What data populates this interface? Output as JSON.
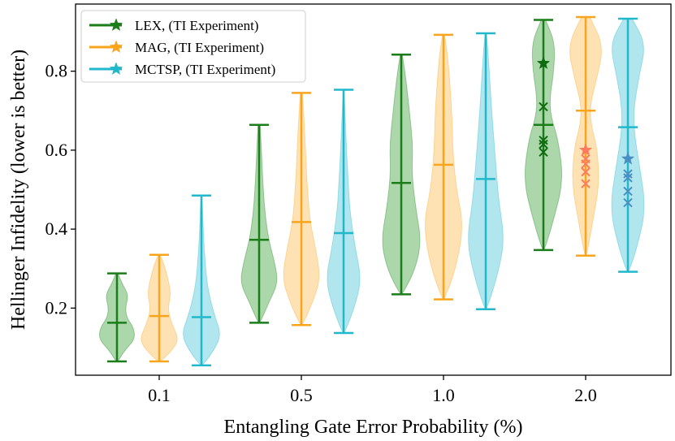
{
  "chart_data": {
    "type": "violin",
    "xlabel": "Entangling Gate Error Probability (%)",
    "ylabel": "Hellinger Infidelity (lower is better)",
    "categories": [
      "0.1",
      "0.5",
      "1.0",
      "2.0"
    ],
    "ylim": [
      0.03,
      0.97
    ],
    "yticks": [
      0.2,
      0.4,
      0.6,
      0.8
    ],
    "ytick_labels": [
      "0.2",
      "0.4",
      "0.6",
      "0.8"
    ],
    "grid": false,
    "legend_position": "top-left",
    "series": [
      {
        "name": "LEX, (TI Experiment)",
        "color": "#1a7d1a",
        "fill": "#8fc98f",
        "stats": [
          {
            "min": 0.065,
            "median": 0.163,
            "max": 0.288
          },
          {
            "min": 0.163,
            "median": 0.373,
            "max": 0.664
          },
          {
            "min": 0.235,
            "median": 0.517,
            "max": 0.842
          },
          {
            "min": 0.347,
            "median": 0.664,
            "max": 0.93
          }
        ],
        "experiment": [
          0.82,
          0.71,
          0.625,
          0.615,
          0.595
        ]
      },
      {
        "name": "MAG, (TI Experiment)",
        "color": "#f8a51d",
        "fill": "#fdd899",
        "stats": [
          {
            "min": 0.065,
            "median": 0.18,
            "max": 0.335
          },
          {
            "min": 0.157,
            "median": 0.418,
            "max": 0.745
          },
          {
            "min": 0.222,
            "median": 0.563,
            "max": 0.892
          },
          {
            "min": 0.333,
            "median": 0.7,
            "max": 0.937
          }
        ],
        "experiment": [
          0.6,
          0.578,
          0.565,
          0.545,
          0.515
        ]
      },
      {
        "name": "MCTSP, (TI Experiment)",
        "color": "#22b8cc",
        "fill": "#97dde8",
        "stats": [
          {
            "min": 0.055,
            "median": 0.177,
            "max": 0.485
          },
          {
            "min": 0.137,
            "median": 0.39,
            "max": 0.753
          },
          {
            "min": 0.197,
            "median": 0.527,
            "max": 0.896
          },
          {
            "min": 0.292,
            "median": 0.658,
            "max": 0.933
          }
        ],
        "experiment": [
          0.578,
          0.54,
          0.53,
          0.496,
          0.467
        ]
      }
    ]
  }
}
